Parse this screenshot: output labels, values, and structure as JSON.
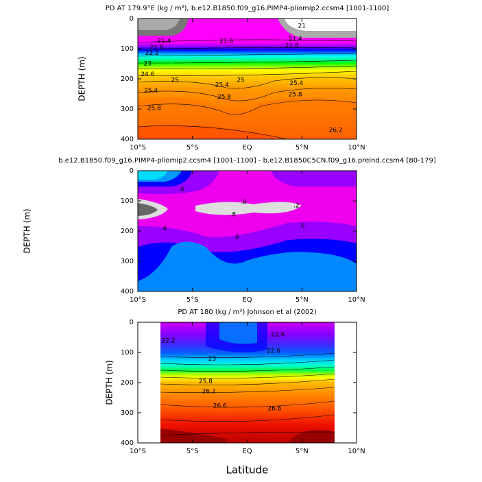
{
  "chart_data": [
    {
      "type": "contour",
      "title": "PD AT 179.9°E (kg / m³), b.e12.B1850.f09_g16.PIMP4-pliomip2.ccsm4 [1001-1100]",
      "ylabel": "DEPTH (m)",
      "xlim": [
        -10,
        10
      ],
      "ylim": [
        400,
        0
      ],
      "xticks": [
        {
          "value": -10,
          "label": "10°S"
        },
        {
          "value": -5,
          "label": "5°S"
        },
        {
          "value": 0,
          "label": "EQ"
        },
        {
          "value": 5,
          "label": "5°N"
        },
        {
          "value": 10,
          "label": "10°N"
        }
      ],
      "yticks": [
        0,
        100,
        200,
        300,
        400
      ],
      "contour_labels": [
        {
          "x": -7.6,
          "y": 75,
          "level": 21.4
        },
        {
          "x": -8.3,
          "y": 97,
          "level": 21.8
        },
        {
          "x": -8.7,
          "y": 115,
          "level": 22.2
        },
        {
          "x": -9.1,
          "y": 150,
          "level": 23
        },
        {
          "x": -9.1,
          "y": 185,
          "level": 24.6
        },
        {
          "x": -6.6,
          "y": 205,
          "level": 25
        },
        {
          "x": -8.8,
          "y": 240,
          "level": 25.4
        },
        {
          "x": -8.5,
          "y": 298,
          "level": 25.8
        },
        {
          "x": -1.9,
          "y": 75,
          "level": 21.6
        },
        {
          "x": -0.6,
          "y": 205,
          "level": 25
        },
        {
          "x": -2.3,
          "y": 220,
          "level": 25.4
        },
        {
          "x": -2.1,
          "y": 260,
          "level": 25.8
        },
        {
          "x": 5.0,
          "y": 25,
          "level": 21
        },
        {
          "x": 4.4,
          "y": 68,
          "level": 21.4
        },
        {
          "x": 4.1,
          "y": 90,
          "level": 21.8
        },
        {
          "x": 4.5,
          "y": 215,
          "level": 25.4
        },
        {
          "x": 4.4,
          "y": 252,
          "level": 25.8
        },
        {
          "x": 8.1,
          "y": 370,
          "level": 26.2
        }
      ]
    },
    {
      "type": "contour",
      "title": "b.e12.B1850.f09_g16.PIMP4-pliomip2.ccsm4 [1001-1100] - b.e12.B1850C5CN.f09_g16.preind.ccsm4 [80-179]",
      "ylabel": "DEPTH (m)",
      "xlim": [
        -10,
        10
      ],
      "ylim": [
        400,
        0
      ],
      "xticks": [
        {
          "value": -10,
          "label": "10°S"
        },
        {
          "value": -5,
          "label": "5°S"
        },
        {
          "value": 0,
          "label": "EQ"
        },
        {
          "value": 5,
          "label": "5°N"
        },
        {
          "value": 10,
          "label": "10°N"
        }
      ],
      "yticks": [
        0,
        100,
        200,
        300,
        400
      ],
      "contour_labels": [
        {
          "x": -6.0,
          "y": 61,
          "level": {
            "value": 0.6,
            "label": ".6"
          }
        },
        {
          "x": -0.3,
          "y": 105,
          "level": {
            "value": 0.8,
            "label": ".8"
          }
        },
        {
          "x": -1.3,
          "y": 145,
          "level": {
            "value": 0.8,
            "label": ".8"
          }
        },
        {
          "x": -7.6,
          "y": 191,
          "level": {
            "value": 0.6,
            "label": ".6"
          }
        },
        {
          "x": -1.0,
          "y": 220,
          "level": {
            "value": 0.6,
            "label": ".6"
          }
        },
        {
          "x": 5.0,
          "y": 184,
          "level": {
            "value": 0.6,
            "label": ".6"
          }
        },
        {
          "x": 4.5,
          "y": 116,
          "level": {
            "value": 0.2,
            "label": ".2"
          }
        }
      ]
    },
    {
      "type": "contour",
      "title": "PD AT 180 (kg / m³) Johnson et al (2002)",
      "ylabel": "DEPTH (m)",
      "xlabel": "Latitude",
      "xlim": [
        -10,
        10
      ],
      "ylim": [
        400,
        0
      ],
      "xticks": [
        {
          "value": -10,
          "label": "10°S"
        },
        {
          "value": -5,
          "label": "5°S"
        },
        {
          "value": 0,
          "label": "EQ"
        },
        {
          "value": 5,
          "label": "5°N"
        },
        {
          "value": 10,
          "label": "10°N"
        }
      ],
      "yticks": [
        0,
        100,
        200,
        300,
        400
      ],
      "contour_labels": [
        {
          "x": -7.2,
          "y": 61,
          "level": 22.2
        },
        {
          "x": 2.8,
          "y": 41,
          "level": 22.6
        },
        {
          "x": -3.2,
          "y": 122,
          "level": 23
        },
        {
          "x": 2.4,
          "y": 95,
          "level": 22.6
        },
        {
          "x": -3.8,
          "y": 197,
          "level": 25.8
        },
        {
          "x": -3.5,
          "y": 230,
          "level": 26.2
        },
        {
          "x": -2.5,
          "y": 277,
          "level": 26.6
        },
        {
          "x": 2.5,
          "y": 286,
          "level": 26.8
        }
      ]
    }
  ]
}
